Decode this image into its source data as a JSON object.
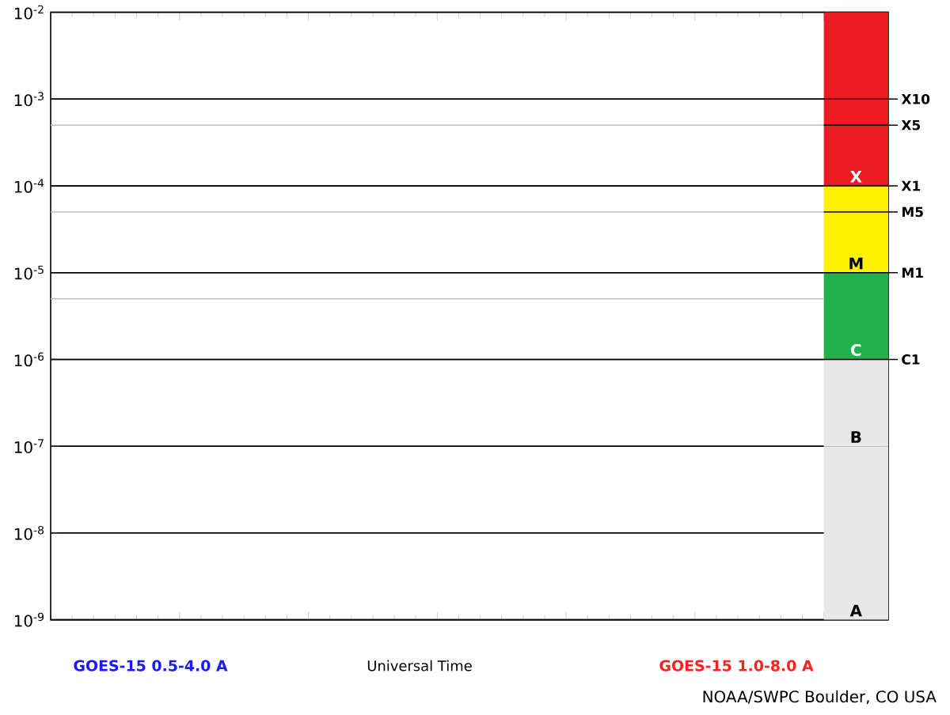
{
  "chart_data": {
    "type": "line",
    "xlabel": "Universal Time",
    "categories": [
      null,
      null,
      null,
      null,
      null,
      null,
      null
    ],
    "series": [
      {
        "name": "GOES-15 0.5-4.0 A",
        "color": "#1a1aff",
        "values": [
          null,
          null,
          null,
          null,
          null,
          null,
          null
        ]
      },
      {
        "name": "GOES-15 1.0-8.0 A",
        "color": "#ff2020",
        "values": [
          null,
          null,
          null,
          null,
          null,
          null,
          null
        ]
      }
    ],
    "log": "y",
    "ylim": [
      1e-09,
      0.01
    ],
    "yticks": [
      {
        "value": 1e-09,
        "label": "10$^{-9}$"
      },
      {
        "value": 1e-08,
        "label": "10$^{-8}$"
      },
      {
        "value": 1e-07,
        "label": "10$^{-7}$"
      },
      {
        "value": 1e-06,
        "label": "10$^{-6}$"
      },
      {
        "value": 1e-05,
        "label": "10$^{-5}$"
      },
      {
        "value": 0.0001,
        "label": "10$^{-4}$"
      },
      {
        "value": 0.001,
        "label": "10$^{-3}$"
      },
      {
        "value": 0.01,
        "label": "10$^{-2}$"
      }
    ],
    "tick_labels": "y",
    "grid": "y",
    "legend": "bottom",
    "ref_lines": [
      {
        "axis": "y",
        "value": 0.001,
        "label": "X10",
        "color": "#000000"
      },
      {
        "axis": "y",
        "value": 0.0005,
        "label": "X5",
        "color": "#c0c0c0"
      },
      {
        "axis": "y",
        "value": 0.0001,
        "label": "X1",
        "color": "#000000"
      },
      {
        "axis": "y",
        "value": 5e-05,
        "label": "M5",
        "color": "#c0c0c0"
      },
      {
        "axis": "y",
        "value": 1e-05,
        "label": "M1",
        "color": "#000000"
      },
      {
        "axis": "y",
        "value": 5e-06,
        "label": null,
        "color": "#c0c0c0"
      },
      {
        "axis": "y",
        "value": 1e-06,
        "label": "C1",
        "color": "#000000"
      }
    ],
    "bands": [
      {
        "axis": "y",
        "from": 1e-09,
        "to": 1e-07,
        "label": "A",
        "color": "#e8e8e8"
      },
      {
        "axis": "y",
        "from": 1e-07,
        "to": 1e-06,
        "label": "B",
        "color": "#e8e8e8"
      },
      {
        "axis": "y",
        "from": 1e-06,
        "to": 1e-05,
        "label": "C",
        "color": "#22b14c"
      },
      {
        "axis": "y",
        "from": 1e-05,
        "to": 0.0001,
        "label": "M",
        "color": "#fff200"
      },
      {
        "axis": "y",
        "from": 0.0001,
        "to": 0.01,
        "label": "X",
        "color": "#ed1c24"
      }
    ],
    "annotations": [
      "NOAA/SWPC Boulder, CO USA"
    ]
  }
}
